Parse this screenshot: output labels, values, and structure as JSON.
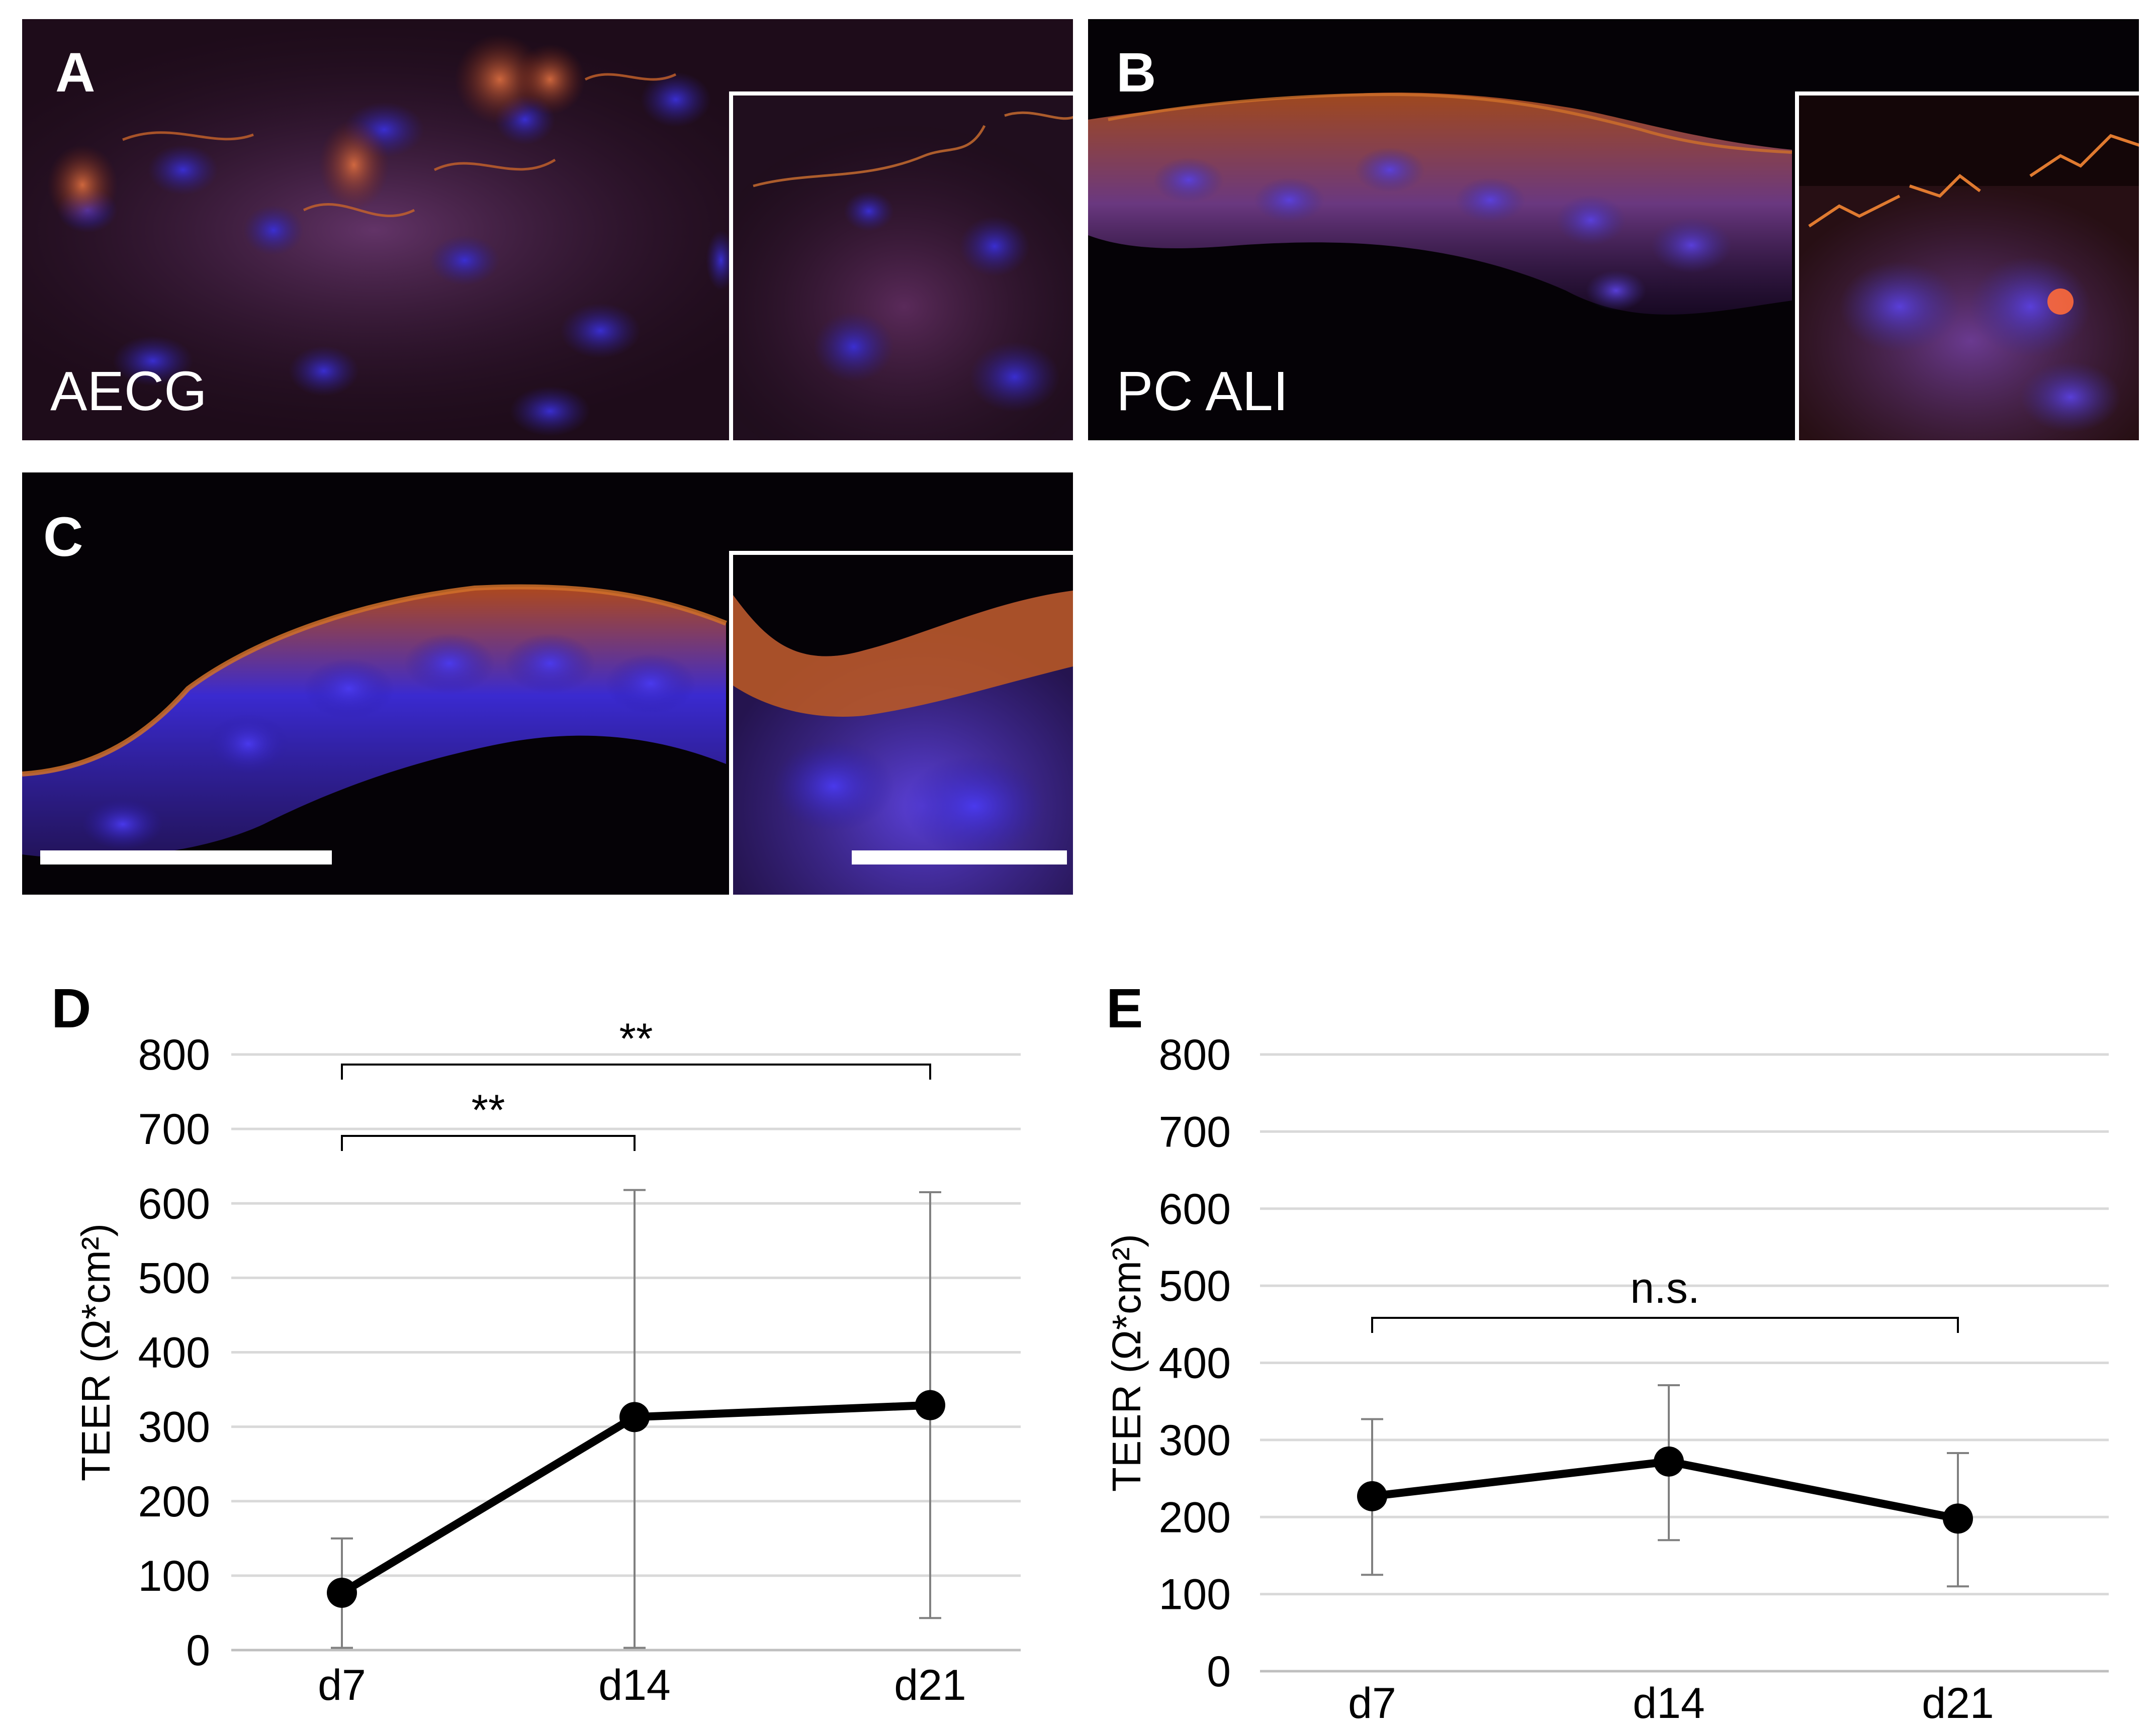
{
  "panels": {
    "A": {
      "letter": "A",
      "caption": "AECG"
    },
    "B": {
      "letter": "B",
      "caption": "PC ALI"
    },
    "C": {
      "letter": "C"
    }
  },
  "colors": {
    "background": "#050206",
    "membrane_stain": "#e0641e",
    "nuclear_stain": "#3a2fc8",
    "inset_border": "#ffffff",
    "line": "#000000",
    "error_bar": "#808080",
    "grid": "#d9d9d9"
  },
  "chart_data": [
    {
      "panel_letter": "D",
      "type": "line",
      "ylabel": "TEER (Ω*cm²)",
      "categories": [
        "d7",
        "d14",
        "d21"
      ],
      "values": [
        77,
        313,
        329
      ],
      "error_upper": [
        150,
        618,
        615
      ],
      "error_lower": [
        3,
        3,
        43
      ],
      "ylim": [
        0,
        800
      ],
      "yticks": [
        "0",
        "100",
        "200",
        "300",
        "400",
        "500",
        "600",
        "700",
        "800"
      ],
      "grid": true,
      "significance": [
        {
          "from": 0,
          "to": 1,
          "label": "**"
        },
        {
          "from": 0,
          "to": 2,
          "label": "**"
        }
      ]
    },
    {
      "panel_letter": "E",
      "type": "line",
      "ylabel": "TEER (Ω*cm²)",
      "categories": [
        "d7",
        "d14",
        "d21"
      ],
      "values": [
        227,
        272,
        198
      ],
      "error_upper": [
        327,
        371,
        283
      ],
      "error_lower": [
        125,
        170,
        110
      ],
      "ylim": [
        0,
        800
      ],
      "yticks": [
        "0",
        "100",
        "200",
        "300",
        "400",
        "500",
        "600",
        "700",
        "800"
      ],
      "grid": true,
      "significance": [
        {
          "from": 0,
          "to": 2,
          "label": "n.s."
        }
      ]
    }
  ]
}
